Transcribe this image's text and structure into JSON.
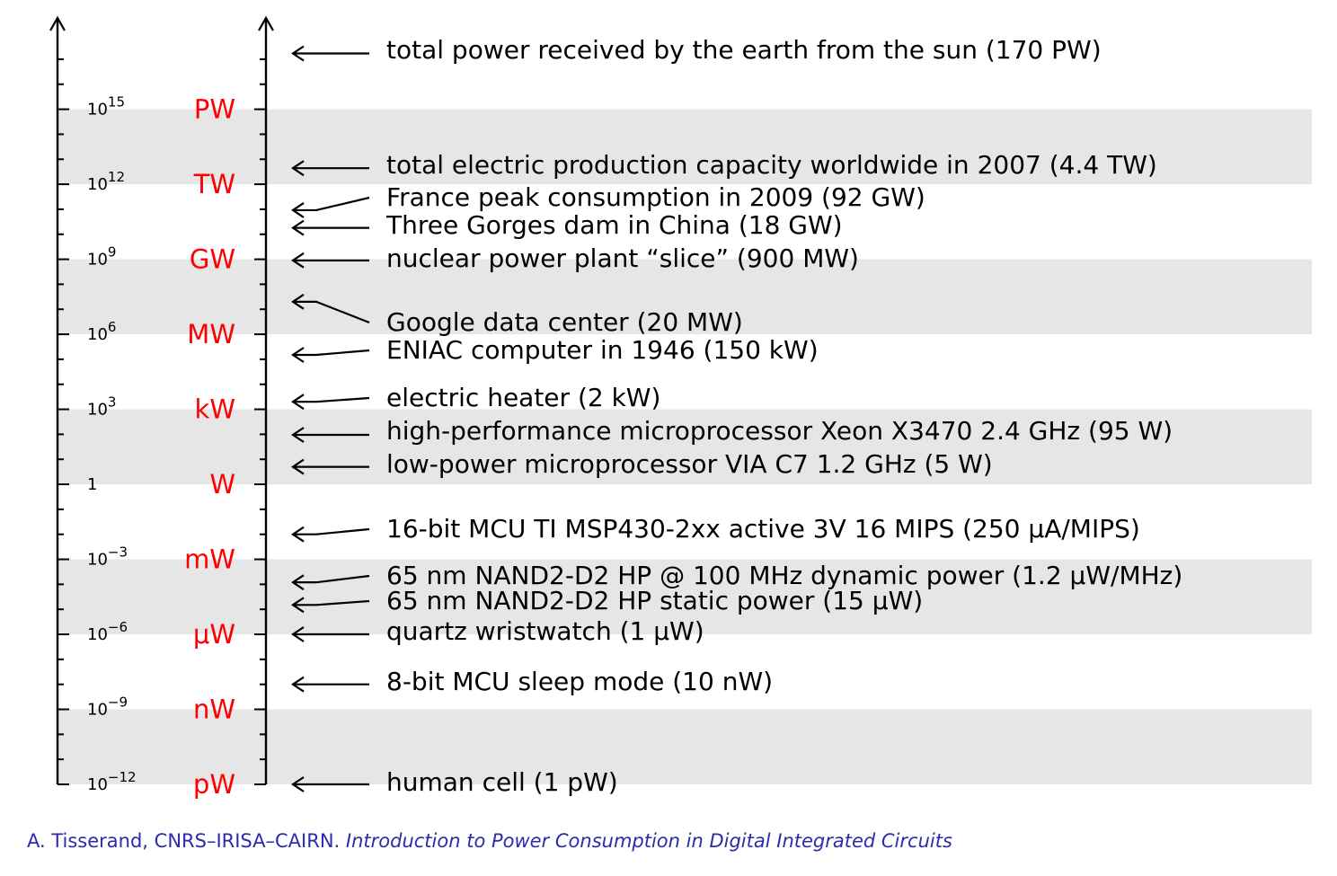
{
  "chart_data": {
    "type": "scale",
    "scale": "log10",
    "unit": "W",
    "range": [
      1e-12,
      1e+18
    ],
    "ticks": [
      {
        "exponent": 15,
        "exp_label_base": "10",
        "exp_label_sup": "15",
        "unit": "PW"
      },
      {
        "exponent": 12,
        "exp_label_base": "10",
        "exp_label_sup": "12",
        "unit": "TW"
      },
      {
        "exponent": 9,
        "exp_label_base": "10",
        "exp_label_sup": "9",
        "unit": "GW"
      },
      {
        "exponent": 6,
        "exp_label_base": "10",
        "exp_label_sup": "6",
        "unit": "MW"
      },
      {
        "exponent": 3,
        "exp_label_base": "10",
        "exp_label_sup": "3",
        "unit": "kW"
      },
      {
        "exponent": 0,
        "exp_label_base": "1",
        "exp_label_sup": "",
        "unit": "W"
      },
      {
        "exponent": -3,
        "exp_label_base": "10",
        "exp_label_sup": "−3",
        "unit": "mW"
      },
      {
        "exponent": -6,
        "exp_label_base": "10",
        "exp_label_sup": "−6",
        "unit": "μW"
      },
      {
        "exponent": -9,
        "exp_label_base": "10",
        "exp_label_sup": "−9",
        "unit": "nW"
      },
      {
        "exponent": -12,
        "exp_label_base": "10",
        "exp_label_sup": "−12",
        "unit": "pW"
      }
    ],
    "shaded_bands": [
      [
        12,
        15
      ],
      [
        6,
        9
      ],
      [
        0,
        3
      ],
      [
        -6,
        -3
      ],
      [
        -12,
        -9
      ]
    ],
    "annotations": [
      {
        "label": "total power received by the earth from the sun (170 PW)",
        "value_w": 1.7e+17
      },
      {
        "label": "total electric production capacity worldwide in 2007 (4.4 TW)",
        "value_w": 4400000000000.0
      },
      {
        "label": "France peak consumption in 2009 (92 GW)",
        "value_w": 92000000000.0
      },
      {
        "label": "Three Gorges dam in China (18 GW)",
        "value_w": 18000000000.0
      },
      {
        "label": "nuclear power plant “slice” (900 MW)",
        "value_w": 900000000.0
      },
      {
        "label": "Google data center (20 MW)",
        "value_w": 20000000.0
      },
      {
        "label": "ENIAC computer in 1946 (150 kW)",
        "value_w": 150000.0
      },
      {
        "label": "electric heater (2 kW)",
        "value_w": 2000.0
      },
      {
        "label": "high-performance microprocessor Xeon X3470 2.4 GHz (95 W)",
        "value_w": 95
      },
      {
        "label": "low-power microprocessor VIA C7 1.2 GHz (5 W)",
        "value_w": 5
      },
      {
        "label": "16-bit MCU TI MSP430-2xx active 3V 16 MIPS (250 μA/MIPS)",
        "value_w": 0.01
      },
      {
        "label": "65 nm NAND2-D2 HP @ 100 MHz dynamic power (1.2 μW/MHz)",
        "value_w": 0.00012
      },
      {
        "label": "65 nm NAND2-D2 HP static power (15 μW)",
        "value_w": 1.5e-05
      },
      {
        "label": "quartz wristwatch (1 μW)",
        "value_w": 1e-06
      },
      {
        "label": "8-bit MCU sleep mode (10 nW)",
        "value_w": 1e-08
      },
      {
        "label": "human cell (1 pW)",
        "value_w": 1e-12
      }
    ],
    "colors": {
      "unit_label": "#ff0000",
      "band": "#e6e6e6",
      "axis": "#000000"
    }
  },
  "footer": {
    "author": "A. Tisserand, CNRS–IRISA–CAIRN.",
    "title": "Introduction to Power Consumption in Digital Integrated Circuits",
    "color": "#2b2bb0"
  }
}
